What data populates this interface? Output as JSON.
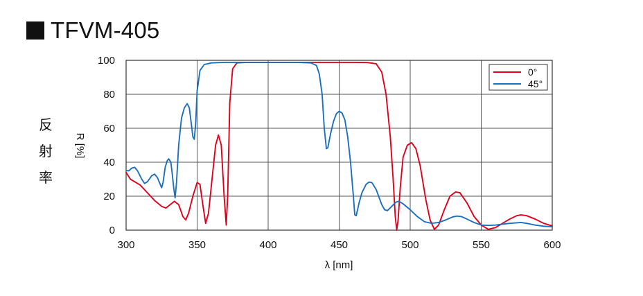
{
  "page": {
    "title": "TFVM-405",
    "side_label": [
      "反",
      "射",
      "率"
    ]
  },
  "chart_data": {
    "type": "line",
    "title": "TFVM-405",
    "xlabel": "λ [nm]",
    "ylabel": "R [%]",
    "xlim": [
      300,
      600
    ],
    "ylim": [
      0,
      100
    ],
    "x_ticks": [
      300,
      350,
      400,
      450,
      500,
      550,
      600
    ],
    "y_ticks": [
      0,
      20,
      40,
      60,
      80,
      100
    ],
    "grid": true,
    "legend": "top-right",
    "series": [
      {
        "name": "0°",
        "color": "#e0001b",
        "points": [
          [
            300,
            34
          ],
          [
            303,
            30
          ],
          [
            306,
            28.5
          ],
          [
            310,
            26.5
          ],
          [
            315,
            22
          ],
          [
            320,
            17.5
          ],
          [
            325,
            14
          ],
          [
            328,
            13
          ],
          [
            331,
            15
          ],
          [
            334,
            17
          ],
          [
            337,
            15
          ],
          [
            340,
            8
          ],
          [
            342,
            6
          ],
          [
            344,
            10
          ],
          [
            347,
            20
          ],
          [
            350,
            28
          ],
          [
            352,
            27
          ],
          [
            354,
            15
          ],
          [
            356,
            4
          ],
          [
            358,
            10
          ],
          [
            361,
            34
          ],
          [
            363,
            50
          ],
          [
            365,
            56
          ],
          [
            367,
            50
          ],
          [
            369,
            20
          ],
          [
            370.5,
            3
          ],
          [
            371.5,
            20
          ],
          [
            373,
            75
          ],
          [
            375,
            95
          ],
          [
            378,
            98.5
          ],
          [
            385,
            98.8
          ],
          [
            400,
            98.8
          ],
          [
            420,
            98.8
          ],
          [
            440,
            98.8
          ],
          [
            460,
            98.8
          ],
          [
            470,
            98.7
          ],
          [
            476,
            98
          ],
          [
            480,
            93
          ],
          [
            483,
            80
          ],
          [
            486,
            55
          ],
          [
            488,
            30
          ],
          [
            489.5,
            8
          ],
          [
            490.5,
            0
          ],
          [
            491.5,
            6
          ],
          [
            493,
            25
          ],
          [
            495,
            43
          ],
          [
            498,
            50
          ],
          [
            501,
            51.5
          ],
          [
            504,
            48
          ],
          [
            507,
            38
          ],
          [
            511,
            18
          ],
          [
            514,
            6
          ],
          [
            517,
            0.5
          ],
          [
            520,
            3
          ],
          [
            524,
            12
          ],
          [
            528,
            20
          ],
          [
            532,
            22.5
          ],
          [
            535,
            22
          ],
          [
            540,
            16
          ],
          [
            545,
            8
          ],
          [
            550,
            3
          ],
          [
            555,
            0.5
          ],
          [
            560,
            1.5
          ],
          [
            565,
            4
          ],
          [
            570,
            6.5
          ],
          [
            575,
            8.5
          ],
          [
            578,
            9
          ],
          [
            582,
            8.5
          ],
          [
            588,
            6.5
          ],
          [
            594,
            4
          ],
          [
            600,
            2.5
          ]
        ]
      },
      {
        "name": "45°",
        "color": "#1a6fbf",
        "points": [
          [
            300,
            35
          ],
          [
            302,
            35
          ],
          [
            304,
            36.5
          ],
          [
            306,
            37
          ],
          [
            308,
            35
          ],
          [
            311,
            30
          ],
          [
            313,
            27.5
          ],
          [
            315,
            28.5
          ],
          [
            318,
            32
          ],
          [
            320,
            33
          ],
          [
            322,
            31
          ],
          [
            324,
            27
          ],
          [
            325,
            25
          ],
          [
            326,
            28
          ],
          [
            327.5,
            37
          ],
          [
            329,
            41
          ],
          [
            330,
            42
          ],
          [
            331.5,
            40
          ],
          [
            332.5,
            33
          ],
          [
            333.5,
            25
          ],
          [
            334.5,
            19
          ],
          [
            335.5,
            28
          ],
          [
            337,
            50
          ],
          [
            339,
            66
          ],
          [
            341,
            72
          ],
          [
            343,
            74.5
          ],
          [
            344.5,
            72
          ],
          [
            346,
            62
          ],
          [
            347,
            55
          ],
          [
            348,
            53.5
          ],
          [
            349,
            63
          ],
          [
            350,
            82
          ],
          [
            352,
            94
          ],
          [
            355,
            97.5
          ],
          [
            360,
            98.5
          ],
          [
            370,
            98.8
          ],
          [
            400,
            98.8
          ],
          [
            420,
            98.8
          ],
          [
            430,
            98.5
          ],
          [
            434,
            97
          ],
          [
            436,
            92
          ],
          [
            438,
            80
          ],
          [
            439.5,
            60
          ],
          [
            441,
            48
          ],
          [
            442,
            48.5
          ],
          [
            444,
            57
          ],
          [
            446,
            64
          ],
          [
            448,
            68.5
          ],
          [
            450,
            70
          ],
          [
            452,
            69
          ],
          [
            454,
            65
          ],
          [
            456,
            55
          ],
          [
            458,
            40
          ],
          [
            460,
            20
          ],
          [
            461,
            9
          ],
          [
            462,
            8.5
          ],
          [
            464,
            16
          ],
          [
            466,
            22
          ],
          [
            469,
            27
          ],
          [
            471,
            28.3
          ],
          [
            473,
            28
          ],
          [
            476,
            24
          ],
          [
            480,
            15
          ],
          [
            482,
            12
          ],
          [
            484,
            11.5
          ],
          [
            487,
            14
          ],
          [
            490,
            16.5
          ],
          [
            492,
            17
          ],
          [
            495,
            15.5
          ],
          [
            500,
            12
          ],
          [
            505,
            8
          ],
          [
            510,
            5
          ],
          [
            515,
            4
          ],
          [
            520,
            4.5
          ],
          [
            525,
            6
          ],
          [
            530,
            7.8
          ],
          [
            533,
            8.3
          ],
          [
            536,
            8
          ],
          [
            540,
            6.5
          ],
          [
            545,
            4.5
          ],
          [
            550,
            3
          ],
          [
            555,
            2.8
          ],
          [
            560,
            3
          ],
          [
            565,
            3.5
          ],
          [
            570,
            4
          ],
          [
            575,
            4.3
          ],
          [
            578,
            4.5
          ],
          [
            582,
            4
          ],
          [
            588,
            3
          ],
          [
            594,
            2.3
          ],
          [
            600,
            2
          ]
        ]
      }
    ]
  }
}
